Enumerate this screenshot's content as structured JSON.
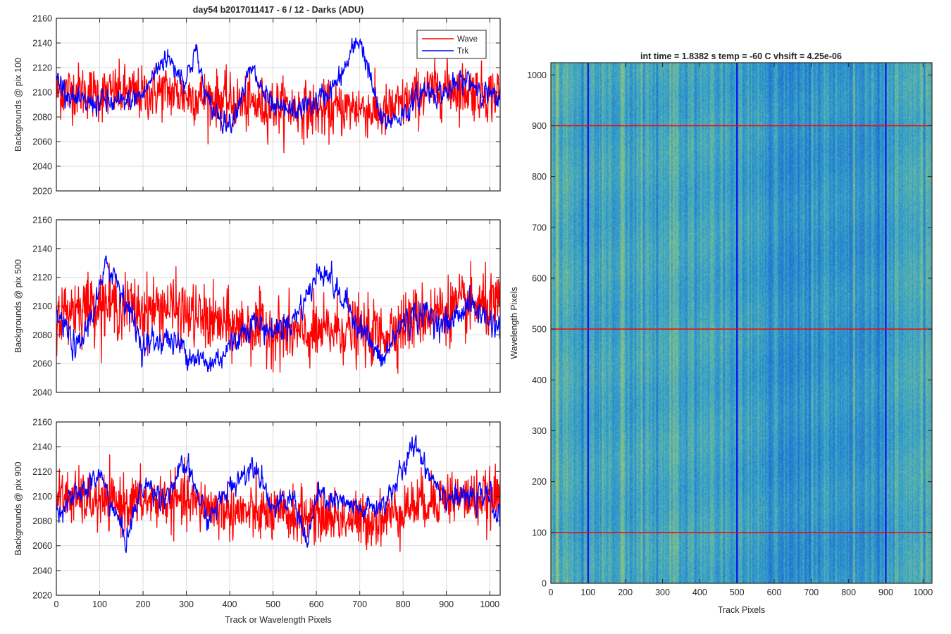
{
  "figure": {
    "left_title": "day54 b2017011417 - 6 / 12 - Darks (ADU)",
    "right_title": "int time = 1.8382 s    temp = -60 C    vhsift = 4.25e-06"
  },
  "colors": {
    "wave": "#ff0000",
    "trk": "#0000ff",
    "axis": "#262626",
    "grid": "#dcdcdc",
    "heatmap_base": "#3fa6c8",
    "heatmap_light": "#9cc47a",
    "heatmap_dark": "#1f6fcf"
  },
  "chart_data": [
    {
      "type": "line",
      "ylabel": "Backgrounds @ pix 100",
      "xlabel": "",
      "xlim": [
        0,
        1024
      ],
      "ylim": [
        2020,
        2160
      ],
      "xticks": [
        0,
        100,
        200,
        300,
        400,
        500,
        600,
        700,
        800,
        900,
        1000
      ],
      "yticks": [
        2020,
        2040,
        2060,
        2080,
        2100,
        2120,
        2140,
        2160
      ],
      "show_x_ticklabels": false,
      "grid": true,
      "legend": {
        "position": "top-right",
        "entries": [
          "Wave",
          "Trk"
        ]
      },
      "series": [
        {
          "name": "Wave",
          "color": "#ff0000",
          "noise": "high",
          "x": [
            0,
            50,
            100,
            150,
            200,
            250,
            300,
            350,
            400,
            450,
            500,
            550,
            600,
            650,
            700,
            750,
            800,
            850,
            900,
            950,
            1000,
            1024
          ],
          "y": [
            2100,
            2102,
            2098,
            2100,
            2098,
            2101,
            2097,
            2096,
            2092,
            2090,
            2089,
            2087,
            2085,
            2086,
            2088,
            2082,
            2090,
            2100,
            2104,
            2102,
            2098,
            2100
          ]
        },
        {
          "name": "Trk",
          "color": "#0000ff",
          "noise": "low",
          "x": [
            0,
            50,
            100,
            150,
            200,
            250,
            300,
            320,
            350,
            400,
            450,
            500,
            550,
            600,
            650,
            700,
            750,
            800,
            850,
            900,
            950,
            1000,
            1024
          ],
          "y": [
            2112,
            2090,
            2092,
            2090,
            2098,
            2130,
            2110,
            2135,
            2090,
            2075,
            2118,
            2085,
            2085,
            2092,
            2108,
            2145,
            2075,
            2082,
            2102,
            2100,
            2110,
            2098,
            2088
          ]
        }
      ]
    },
    {
      "type": "line",
      "ylabel": "Backgrounds @ pix 500",
      "xlabel": "",
      "xlim": [
        0,
        1024
      ],
      "ylim": [
        2040,
        2160
      ],
      "xticks": [
        0,
        100,
        200,
        300,
        400,
        500,
        600,
        700,
        800,
        900,
        1000
      ],
      "yticks": [
        2040,
        2060,
        2080,
        2100,
        2120,
        2140,
        2160
      ],
      "show_x_ticklabels": false,
      "grid": true,
      "series": [
        {
          "name": "Wave",
          "color": "#ff0000",
          "noise": "high",
          "x": [
            0,
            50,
            100,
            150,
            200,
            250,
            300,
            350,
            400,
            450,
            500,
            550,
            600,
            650,
            700,
            750,
            800,
            850,
            900,
            950,
            1000,
            1024
          ],
          "y": [
            2094,
            2100,
            2102,
            2100,
            2097,
            2100,
            2095,
            2090,
            2086,
            2085,
            2083,
            2080,
            2080,
            2084,
            2082,
            2080,
            2088,
            2094,
            2098,
            2100,
            2100,
            2098
          ]
        },
        {
          "name": "Trk",
          "color": "#0000ff",
          "noise": "low",
          "x": [
            0,
            50,
            100,
            120,
            150,
            200,
            250,
            300,
            350,
            400,
            450,
            500,
            550,
            600,
            620,
            650,
            700,
            750,
            800,
            850,
            900,
            950,
            1000,
            1024
          ],
          "y": [
            2095,
            2068,
            2110,
            2130,
            2112,
            2072,
            2078,
            2070,
            2058,
            2072,
            2090,
            2082,
            2092,
            2120,
            2128,
            2108,
            2088,
            2060,
            2090,
            2095,
            2086,
            2102,
            2090,
            2085
          ]
        }
      ]
    },
    {
      "type": "line",
      "ylabel": "Backgrounds @ pix 900",
      "xlabel": "Track or Wavelength Pixels",
      "xlim": [
        0,
        1024
      ],
      "ylim": [
        2020,
        2160
      ],
      "xticks": [
        0,
        100,
        200,
        300,
        400,
        500,
        600,
        700,
        800,
        900,
        1000
      ],
      "yticks": [
        2020,
        2040,
        2060,
        2080,
        2100,
        2120,
        2140,
        2160
      ],
      "show_x_ticklabels": true,
      "grid": true,
      "series": [
        {
          "name": "Wave",
          "color": "#ff0000",
          "noise": "high",
          "x": [
            0,
            50,
            100,
            150,
            200,
            250,
            300,
            350,
            400,
            450,
            500,
            550,
            600,
            650,
            700,
            750,
            800,
            850,
            900,
            950,
            1000,
            1024
          ],
          "y": [
            2100,
            2098,
            2095,
            2094,
            2096,
            2097,
            2095,
            2092,
            2088,
            2086,
            2085,
            2084,
            2085,
            2083,
            2080,
            2082,
            2090,
            2096,
            2100,
            2098,
            2098,
            2100
          ]
        },
        {
          "name": "Trk",
          "color": "#0000ff",
          "noise": "low",
          "x": [
            0,
            50,
            100,
            160,
            200,
            250,
            300,
            350,
            400,
            460,
            500,
            550,
            580,
            600,
            650,
            700,
            750,
            800,
            830,
            850,
            900,
            950,
            1000,
            1024
          ],
          "y": [
            2090,
            2100,
            2118,
            2065,
            2110,
            2100,
            2125,
            2080,
            2108,
            2128,
            2090,
            2098,
            2060,
            2100,
            2095,
            2088,
            2092,
            2120,
            2145,
            2125,
            2100,
            2098,
            2100,
            2080
          ]
        }
      ]
    },
    {
      "type": "heatmap",
      "title": "int time = 1.8382 s    temp = -60 C    vhsift = 4.25e-06",
      "xlabel": "Track Pixels",
      "ylabel": "Wavelength Pixels",
      "xlim": [
        0,
        1024
      ],
      "ylim": [
        0,
        1024
      ],
      "xticks": [
        0,
        100,
        200,
        300,
        400,
        500,
        600,
        700,
        800,
        900,
        1000
      ],
      "yticks": [
        0,
        100,
        200,
        300,
        400,
        500,
        600,
        700,
        800,
        900,
        1000
      ],
      "vertical_lines": {
        "x": [
          100,
          500,
          900
        ],
        "color": "#0000ff"
      },
      "horizontal_lines": {
        "y": [
          100,
          500,
          900
        ],
        "color": "#ff0000"
      }
    }
  ]
}
